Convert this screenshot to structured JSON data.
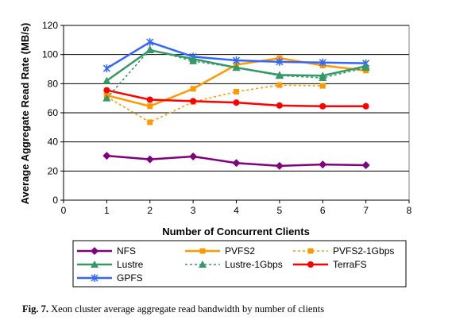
{
  "chart_data": {
    "type": "line",
    "x": [
      1,
      2,
      3,
      4,
      5,
      6,
      7
    ],
    "xlabel": "Number of Concurrent Clients",
    "ylabel": "Average Aggregate Read Rate (MB/s)",
    "xlim": [
      0,
      8
    ],
    "ylim": [
      0,
      120
    ],
    "xticks": [
      0,
      1,
      2,
      3,
      4,
      5,
      6,
      7,
      8
    ],
    "yticks": [
      0,
      20,
      40,
      60,
      80,
      100,
      120
    ],
    "grid": "horizontal",
    "legend_position": "bottom",
    "series": [
      {
        "name": "NFS",
        "values": [
          30.5,
          28,
          30,
          25.5,
          23.5,
          24.5,
          24
        ],
        "color": "#800080",
        "marker": "diamond",
        "dash": "solid"
      },
      {
        "name": "PVFS2",
        "values": [
          72,
          64.5,
          76.5,
          93,
          97.5,
          92.5,
          89
        ],
        "color": "#FF9900",
        "marker": "square",
        "dash": "solid"
      },
      {
        "name": "PVFS2-1Gbps",
        "values": [
          71,
          53.5,
          67.5,
          74.5,
          79,
          78.5,
          null
        ],
        "color": "#FF9900",
        "marker": "square",
        "dash": "dotted"
      },
      {
        "name": "Lustre",
        "values": [
          82,
          103,
          97,
          91,
          86,
          85.5,
          92
        ],
        "color": "#339966",
        "marker": "triangle",
        "dash": "solid"
      },
      {
        "name": "Lustre-1Gbps",
        "values": [
          70,
          103.5,
          95.5,
          91,
          85.5,
          84,
          91
        ],
        "color": "#339966",
        "marker": "triangle",
        "dash": "dotted"
      },
      {
        "name": "TerraFS",
        "values": [
          75.5,
          69,
          68,
          67,
          65,
          64.5,
          64.5
        ],
        "color": "#FF0000",
        "marker": "circle",
        "dash": "solid"
      },
      {
        "name": "GPFS",
        "values": [
          90.5,
          108.5,
          98.5,
          96,
          95,
          94.5,
          94
        ],
        "color": "#3366FF",
        "marker": "star",
        "dash": "solid"
      }
    ]
  },
  "caption": {
    "label": "Fig. 7.",
    "text": " Xeon cluster average aggregate read bandwidth by number of clients"
  }
}
